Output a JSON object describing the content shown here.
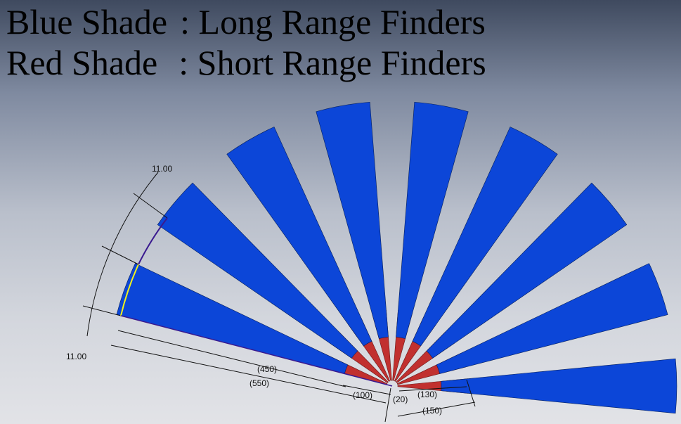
{
  "legend": {
    "blue": {
      "shade": "Blue Shade",
      "separator": " : ",
      "meaning": "Long Range Finders"
    },
    "red": {
      "shade": "Red Shade",
      "separator": " : ",
      "meaning": "Short Range Finders"
    }
  },
  "colors": {
    "long_range": "#0c46d8",
    "short_range": "#c1302f",
    "dimension_line": "#111111",
    "highlight_yellow": "#f2f21a",
    "sketch_purple": "#3a1a8f"
  },
  "fan": {
    "long_range_count": 9,
    "short_range_count": 9,
    "sector_span_deg": 11,
    "spacing_deg": 20,
    "long_range_length": 450,
    "short_range_length": 100
  },
  "dimensions": {
    "angle_top": "11.00",
    "angle_bottom": "11.00",
    "d_450": "(450)",
    "d_550": "(550)",
    "d_100": "(100)",
    "d_20": "(20)",
    "d_130": "(130)",
    "d_150": "(150)"
  }
}
